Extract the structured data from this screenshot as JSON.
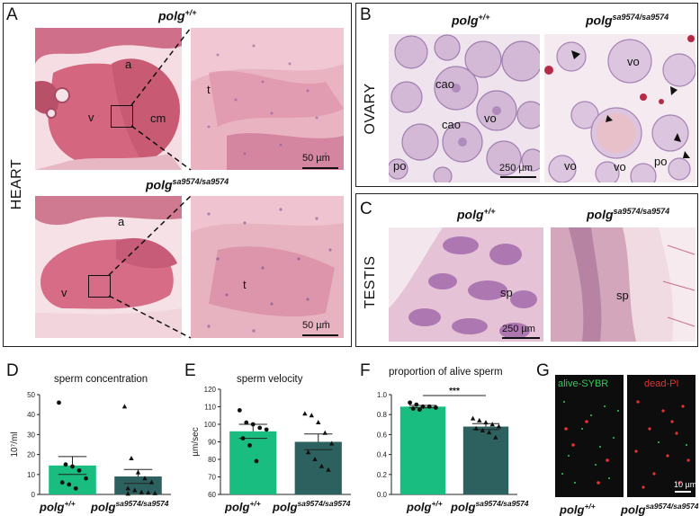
{
  "panels": {
    "A": {
      "letter": "A",
      "side_label": "HEART",
      "top_genotype": {
        "base": "polg",
        "sup": "+/+"
      },
      "bottom_genotype": {
        "base": "polg",
        "sup": "sa9574/sa9574"
      },
      "labels_top": {
        "a": "a",
        "v": "v",
        "cm": "cm",
        "t": "t"
      },
      "labels_bottom": {
        "a": "a",
        "v": "v",
        "t": "t"
      },
      "scale_top": "50 µm",
      "scale_bottom": "50 µm"
    },
    "B": {
      "letter": "B",
      "side_label": "OVARY",
      "left_genotype": {
        "base": "polg",
        "sup": "+/+"
      },
      "right_genotype": {
        "base": "polg",
        "sup": "sa9574/sa9574"
      },
      "labels_left": {
        "cao1": "cao",
        "cao2": "cao",
        "vo": "vo",
        "po": "po"
      },
      "labels_right": {
        "vo1": "vo",
        "vo2": "vo",
        "vo3": "vo",
        "po": "po"
      },
      "scale": "250 µm"
    },
    "C": {
      "letter": "C",
      "side_label": "TESTIS",
      "left_genotype": {
        "base": "polg",
        "sup": "+/+"
      },
      "right_genotype": {
        "base": "polg",
        "sup": "sa9574/sa9574"
      },
      "label_left": "sp",
      "label_right": "sp",
      "scale": "250 µm"
    },
    "D": {
      "letter": "D"
    },
    "E": {
      "letter": "E"
    },
    "F": {
      "letter": "F"
    },
    "G": {
      "letter": "G",
      "left_text": "alive-SYBR",
      "right_text": "dead-PI",
      "scale": "10 µm",
      "left_genotype": {
        "base": "polg",
        "sup": "+/+"
      },
      "right_genotype": {
        "base": "polg",
        "sup": "sa9574/sa9574"
      },
      "left_color": "#35c95a",
      "right_color": "#e8322e"
    }
  },
  "chart_data": [
    {
      "type": "bar",
      "id": "D",
      "title": "sperm concentration",
      "ylabel": "10⁷/ml",
      "ylim": [
        0,
        50
      ],
      "yticks": [
        "0",
        "10",
        "20",
        "30",
        "40",
        "50"
      ],
      "categories": [
        {
          "base": "polg",
          "sup": "+/+"
        },
        {
          "base": "polg",
          "sup": "sa9574/sa9574"
        }
      ],
      "values": [
        14.5,
        9
      ],
      "errors": [
        4.5,
        3.5
      ],
      "colors": [
        "#19bd80",
        "#2d615f"
      ],
      "points": [
        [
          46,
          15,
          14,
          12,
          8,
          6,
          5,
          3
        ],
        [
          44,
          18,
          11,
          8,
          6,
          3,
          2,
          1,
          0.8,
          0.5,
          0.3
        ]
      ]
    },
    {
      "type": "bar",
      "id": "E",
      "title": "sperm velocity",
      "ylabel": "µm/sec",
      "ylim": [
        60,
        120
      ],
      "yticks": [
        "60",
        "70",
        "80",
        "90",
        "100",
        "110",
        "120"
      ],
      "categories": [
        {
          "base": "polg",
          "sup": "+/+"
        },
        {
          "base": "polg",
          "sup": "sa9574/sa9574"
        }
      ],
      "values": [
        96,
        90
      ],
      "errors": [
        4,
        4.5
      ],
      "colors": [
        "#19bd80",
        "#2d615f"
      ],
      "points": [
        [
          108,
          101,
          100,
          98,
          97,
          92,
          88,
          79
        ],
        [
          106,
          105,
          101,
          95,
          89,
          84,
          80,
          76,
          74
        ]
      ]
    },
    {
      "type": "bar",
      "id": "F",
      "title": "proportion of alive sperm",
      "ylabel": "",
      "ylim": [
        0,
        1
      ],
      "yticks": [
        "0.0",
        "0.2",
        "0.4",
        "0.6",
        "0.8",
        "1.0"
      ],
      "categories": [
        {
          "base": "polg",
          "sup": "+/+"
        },
        {
          "base": "polg",
          "sup": "sa9574/sa9574"
        }
      ],
      "values": [
        0.88,
        0.68
      ],
      "errors": [
        0.012,
        0.03
      ],
      "colors": [
        "#19bd80",
        "#2d615f"
      ],
      "significance": "***",
      "points": [
        [
          0.92,
          0.9,
          0.88,
          0.88,
          0.87,
          0.86,
          0.85
        ],
        [
          0.76,
          0.74,
          0.72,
          0.7,
          0.68,
          0.66,
          0.64,
          0.62,
          0.57
        ]
      ]
    }
  ]
}
